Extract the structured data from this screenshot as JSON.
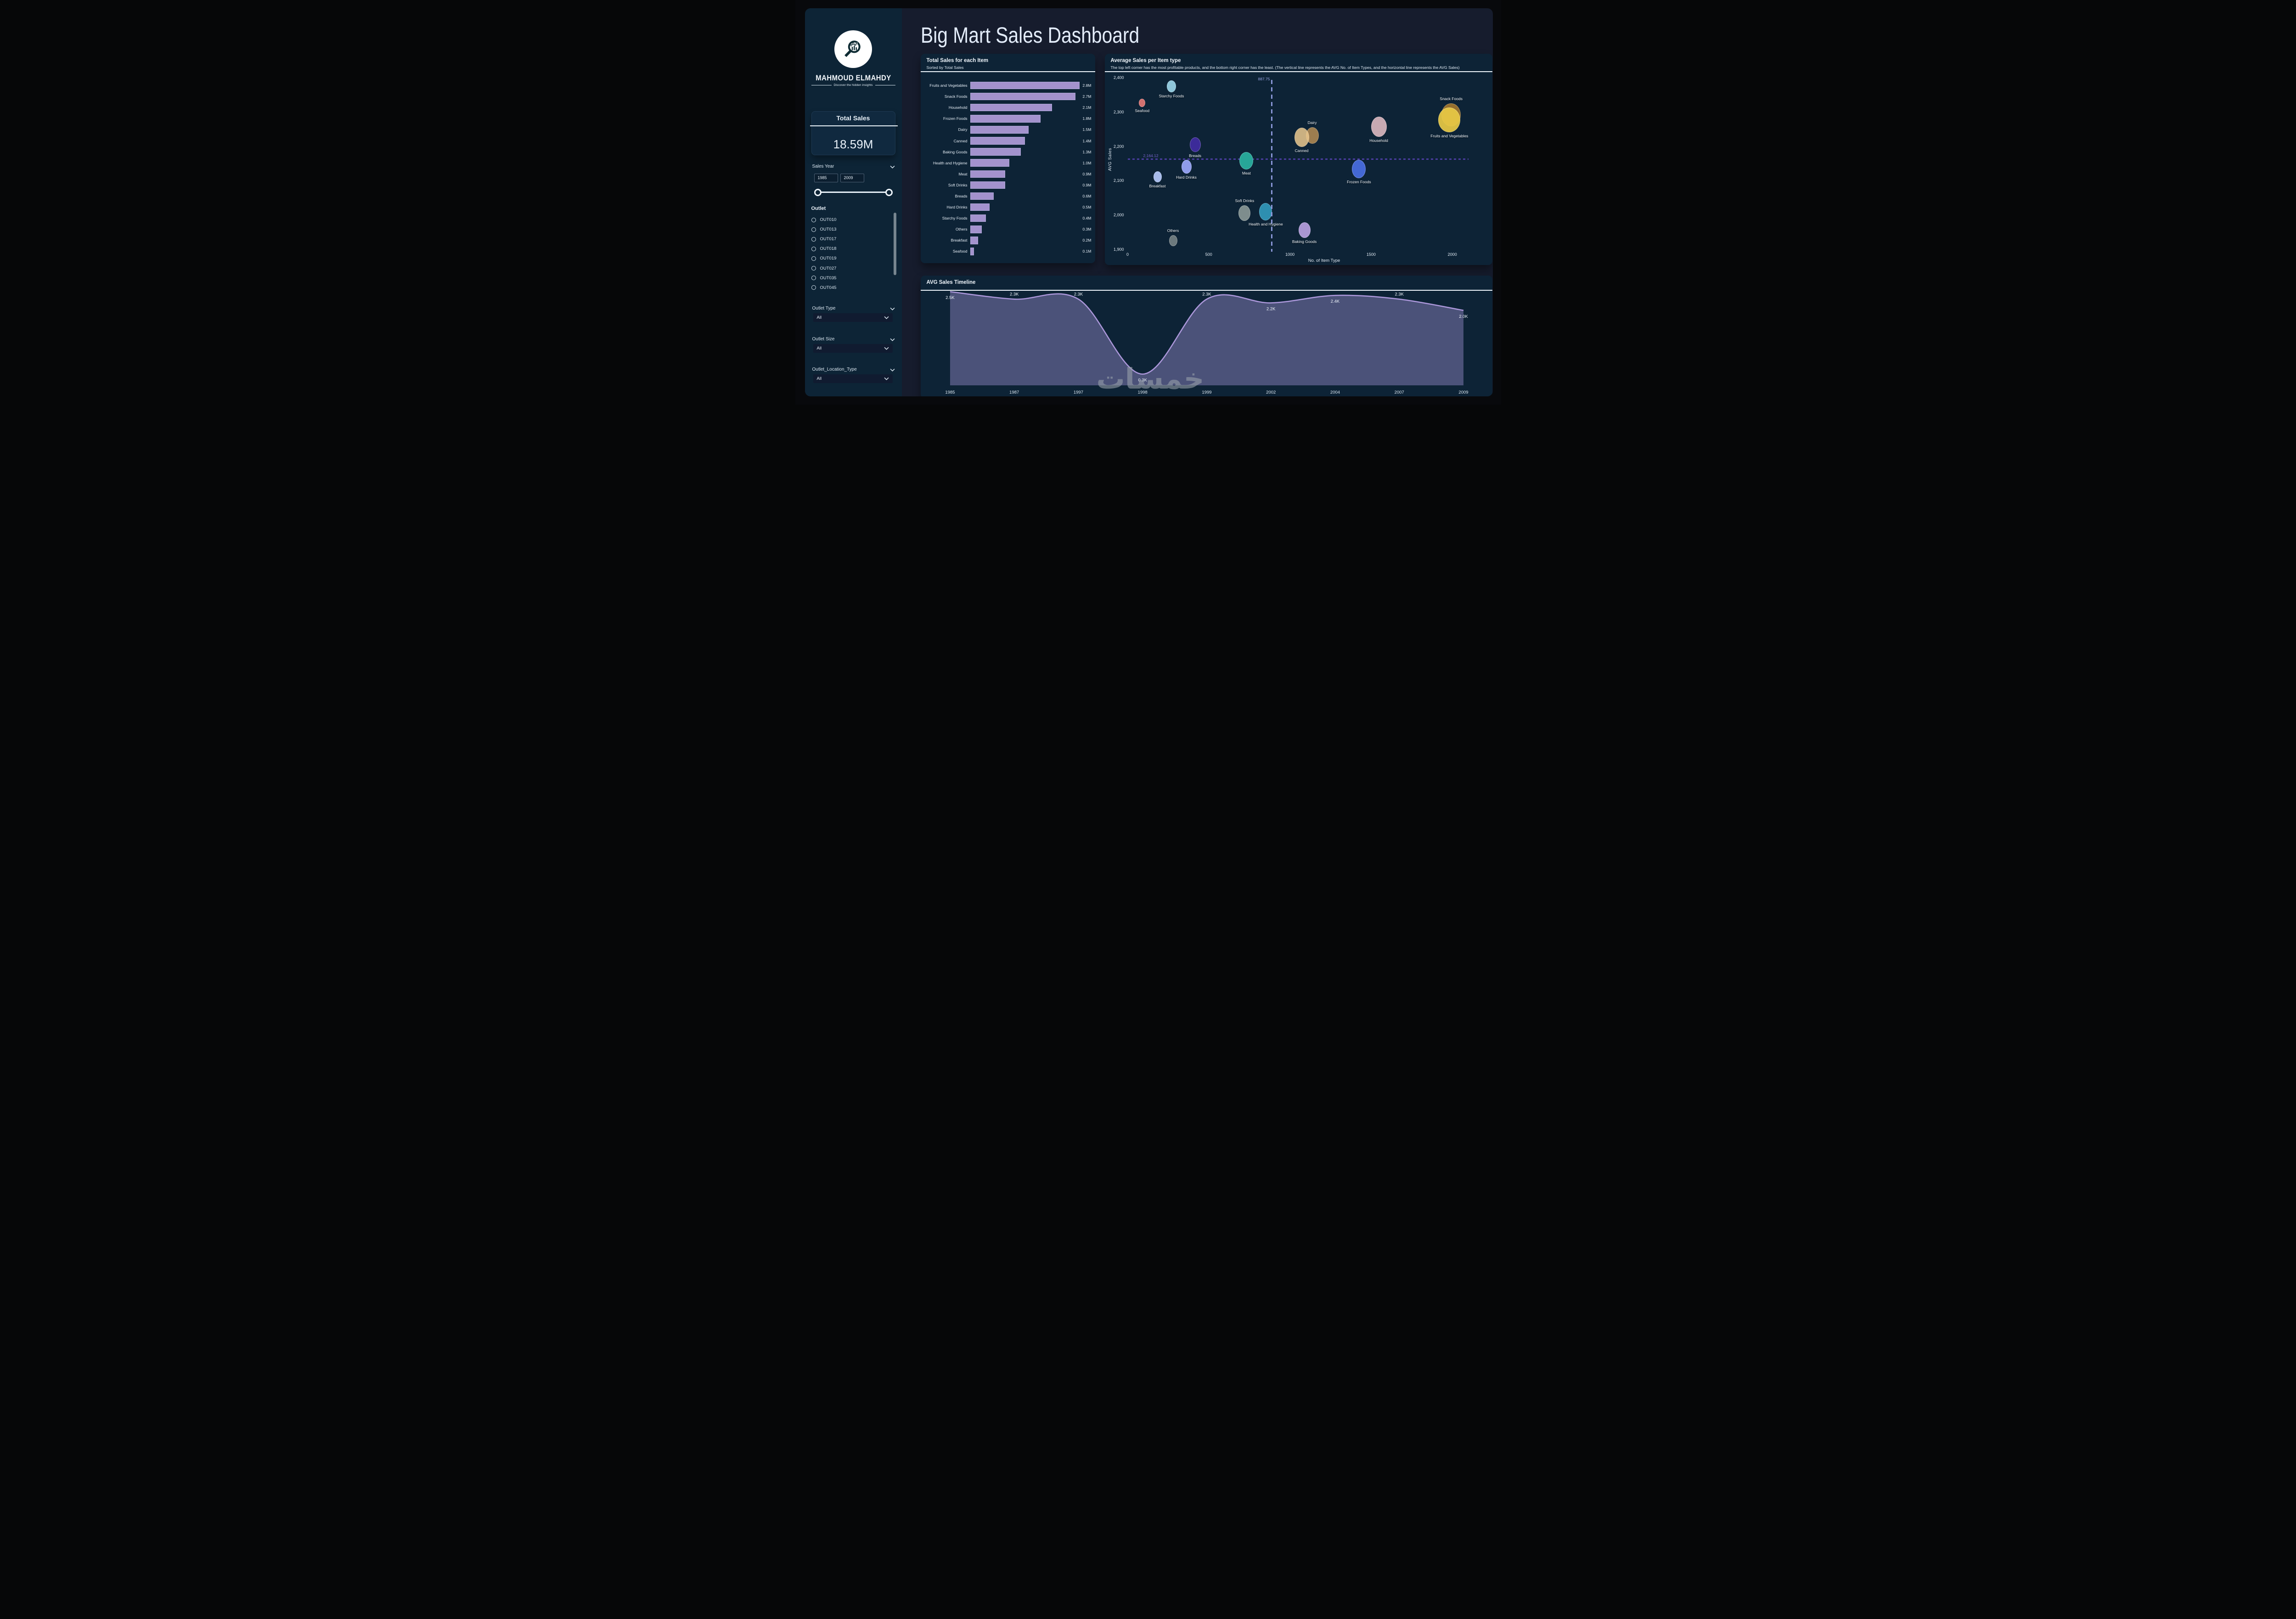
{
  "app": {
    "watermark": "خمسات"
  },
  "header": {
    "title": "Big Mart Sales Dashboard"
  },
  "icons": {
    "chevron_down": "v-shape",
    "magnifier_chart": "magnifying-glass-over-chart",
    "radio_unchecked": "empty-circle"
  },
  "colors": {
    "canvas": "#161c2d",
    "panel": "#0d2336",
    "sidebar": "#0d2436",
    "bar": "#a392cd",
    "timeline_line": "#ab97da",
    "timeline_fill": "#4b5279",
    "avg_vline": "#8a97d8",
    "avg_hline": "#4a3da0"
  },
  "sidebar": {
    "brand": {
      "name": "MAHMOUD ELMAHDY",
      "tagline": "Discover the hidden insights"
    },
    "total_sales": {
      "title": "Total Sales",
      "value": "18.59M"
    },
    "sales_year": {
      "label": "Sales Year",
      "from": "1985",
      "to": "2009"
    },
    "outlet": {
      "label": "Outlet",
      "options": [
        "OUT010",
        "OUT013",
        "OUT017",
        "OUT018",
        "OUT019",
        "OUT027",
        "OUT035",
        "OUT045"
      ]
    },
    "filters": [
      {
        "label": "Outlet Type",
        "value": "All"
      },
      {
        "label": "Outlet Size",
        "value": "All"
      },
      {
        "label": "Outlet_Location_Type",
        "value": "All"
      }
    ]
  },
  "chart_data": [
    {
      "type": "bar",
      "title": "Total Sales for each Item",
      "subtitle": "Sorted by Total Sales",
      "orientation": "horizontal",
      "unit": "M",
      "xlim": [
        0,
        2.8
      ],
      "categories": [
        "Fruits and Vegetables",
        "Snack Foods",
        "Household",
        "Frozen Foods",
        "Dairy",
        "Canned",
        "Baking Goods",
        "Health and Hygiene",
        "Meat",
        "Soft Drinks",
        "Breads",
        "Hard Drinks",
        "Starchy Foods",
        "Others",
        "Breakfast",
        "Seafood"
      ],
      "values": [
        2.8,
        2.7,
        2.1,
        1.8,
        1.5,
        1.4,
        1.3,
        1.0,
        0.9,
        0.9,
        0.6,
        0.5,
        0.4,
        0.3,
        0.2,
        0.1
      ],
      "labels": [
        "2.8M",
        "2.7M",
        "2.1M",
        "1.8M",
        "1.5M",
        "1.4M",
        "1.3M",
        "1.0M",
        "0.9M",
        "0.9M",
        "0.6M",
        "0.5M",
        "0.4M",
        "0.3M",
        "0.2M",
        "0.1M"
      ]
    },
    {
      "type": "scatter",
      "title": "Average Sales per Item type",
      "subtitle": "The top left corner has the most profitable products, and the bottom right corner has the least. (The vertical line represents the AVG No. of Item Types, and the horizontal line represents the AVG Sales)",
      "xlabel": "No. of Item Type",
      "ylabel": "AVG Sales",
      "xlim": [
        0,
        2185
      ],
      "ylim": [
        1900,
        2400
      ],
      "x_ticks": [
        {
          "v": 0,
          "label": "0"
        },
        {
          "v": 500,
          "label": "500"
        },
        {
          "v": 1000,
          "label": "1000"
        },
        {
          "v": 1500,
          "label": "1500"
        },
        {
          "v": 2000,
          "label": "2000"
        }
      ],
      "y_ticks": [
        {
          "v": 2400,
          "label": "2,400"
        },
        {
          "v": 2300,
          "label": "2,300"
        },
        {
          "v": 2200,
          "label": "2,200"
        },
        {
          "v": 2100,
          "label": "2,100"
        },
        {
          "v": 2000,
          "label": "2,000"
        },
        {
          "v": 1900,
          "label": "1,900"
        }
      ],
      "avg_lines": {
        "vertical": {
          "value": 887.75,
          "label": "887.75"
        },
        "horizontal": {
          "value": 2164.12,
          "label": "2,164.12"
        }
      },
      "points": [
        {
          "name": "Starchy Foods",
          "x": 270,
          "y": 2375,
          "rx": 10,
          "ry": 13,
          "color": "#8ec6da",
          "opacity": 1,
          "label_pos": "below"
        },
        {
          "name": "Seafood",
          "x": 90,
          "y": 2326,
          "rx": 7,
          "ry": 9,
          "color": "#d4716f",
          "opacity": 1,
          "label_pos": "below"
        },
        {
          "name": "Breads",
          "x": 416,
          "y": 2205,
          "rx": 12,
          "ry": 16,
          "color": "#3c2b99",
          "opacity": 1,
          "label_pos": "below"
        },
        {
          "name": "Breakfast",
          "x": 184,
          "y": 2111,
          "rx": 9,
          "ry": 12,
          "color": "#a7bbea",
          "opacity": 1,
          "label_pos": "below"
        },
        {
          "name": "Hard Drinks",
          "x": 362,
          "y": 2141,
          "rx": 11,
          "ry": 15,
          "color": "#8f9cea",
          "opacity": 1,
          "label_pos": "below"
        },
        {
          "name": "Meat",
          "x": 732,
          "y": 2158,
          "rx": 15,
          "ry": 19,
          "color": "#27a698",
          "opacity": 1,
          "label_pos": "below"
        },
        {
          "name": "Soft Drinks",
          "x": 721,
          "y": 2006,
          "rx": 13,
          "ry": 17,
          "color": "#7e8d8d",
          "opacity": 1,
          "label_pos": "above"
        },
        {
          "name": "Health and Hygiene",
          "x": 851,
          "y": 2010,
          "rx": 14,
          "ry": 19,
          "color": "#2e8fb0",
          "opacity": 1,
          "label_pos": "below"
        },
        {
          "name": "Others",
          "x": 280,
          "y": 1925,
          "rx": 9,
          "ry": 12,
          "color": "#6c797d",
          "opacity": 1,
          "label_pos": "above"
        },
        {
          "name": "Baking Goods",
          "x": 1089,
          "y": 1956,
          "rx": 13,
          "ry": 17,
          "color": "#a995d2",
          "opacity": 1,
          "label_pos": "below"
        },
        {
          "name": "Dairy",
          "x": 1137,
          "y": 2232,
          "rx": 14,
          "ry": 18,
          "color": "#ad8752",
          "opacity": 0.9,
          "label_pos": "above"
        },
        {
          "name": "Canned",
          "x": 1072,
          "y": 2226,
          "rx": 16,
          "ry": 21,
          "color": "#ecc98f",
          "opacity": 0.85,
          "label_pos": "below"
        },
        {
          "name": "Household",
          "x": 1547,
          "y": 2257,
          "rx": 17,
          "ry": 22,
          "color": "#c7a9b2",
          "opacity": 1,
          "label_pos": "below"
        },
        {
          "name": "Frozen Foods",
          "x": 1425,
          "y": 2134,
          "rx": 15,
          "ry": 20,
          "color": "#4468d4",
          "opacity": 1,
          "label_pos": "below"
        },
        {
          "name": "Snack Foods",
          "x": 1993,
          "y": 2292,
          "rx": 21,
          "ry": 25,
          "color": "#a4782e",
          "opacity": 0.9,
          "label_pos": "above"
        },
        {
          "name": "Fruits and Vegetables",
          "x": 1982,
          "y": 2277,
          "rx": 24,
          "ry": 27,
          "color": "#e9ca45",
          "opacity": 0.92,
          "label_pos": "below"
        }
      ]
    },
    {
      "type": "area",
      "title": "AVG Sales Timeline",
      "categories": [
        "1985",
        "1987",
        "1997",
        "1998",
        "1999",
        "2002",
        "2004",
        "2007",
        "2009"
      ],
      "values": [
        2500,
        2300,
        2300,
        300,
        2300,
        2200,
        2400,
        2300,
        2000
      ],
      "labels": [
        "2.5K",
        "2.3K",
        "2.3K",
        "0.3K",
        "2.3K",
        "2.2K",
        "2.4K",
        "2.3K",
        "2.0K"
      ],
      "label_side": [
        "below",
        "above",
        "above",
        "below",
        "above",
        "below",
        "below",
        "above",
        "below"
      ],
      "ylim": [
        0,
        2550
      ],
      "line_color": "#ab97da",
      "fill_color": "#4b5279"
    }
  ]
}
